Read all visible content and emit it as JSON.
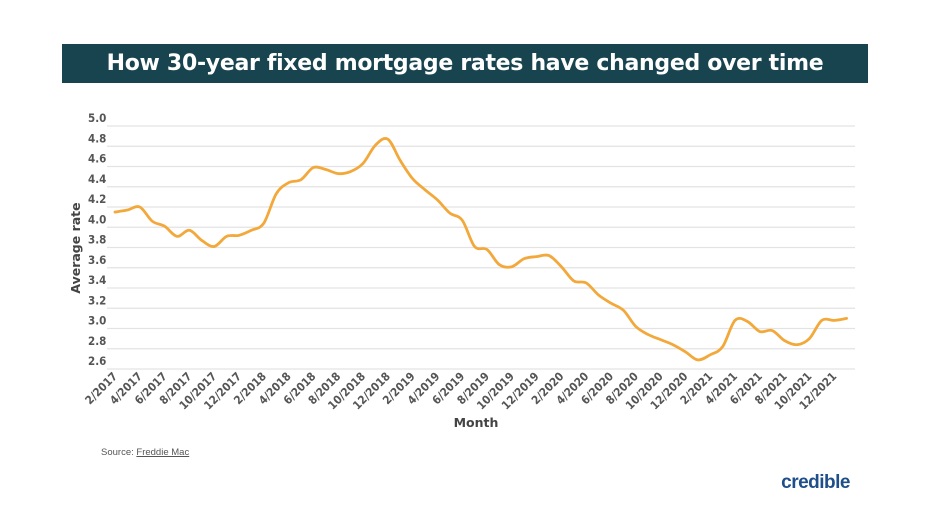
{
  "chart_data": {
    "type": "line",
    "title": "How 30-year fixed mortgage rates have changed over time",
    "xlabel": "Month",
    "ylabel": "Average rate",
    "ylim": [
      2.6,
      5.0
    ],
    "yticks": [
      "5.0",
      "4.8",
      "4.6",
      "4.4",
      "4.2",
      "4.0",
      "3.8",
      "3.6",
      "3.4",
      "3.2",
      "3.0",
      "2.8",
      "2.6"
    ],
    "xticks": [
      "2/2017",
      "4/2017",
      "6/2017",
      "8/2017",
      "10/2017",
      "12/2017",
      "2/2018",
      "4/2018",
      "6/2018",
      "8/2018",
      "10/2018",
      "12/2018",
      "2/2019",
      "4/2019",
      "6/2019",
      "8/2019",
      "10/2019",
      "12/2019",
      "2/2020",
      "4/2020",
      "6/2020",
      "8/2020",
      "10/2020",
      "12/2020",
      "2/2021",
      "4/2021",
      "6/2021",
      "8/2021",
      "10/2021",
      "12/2021"
    ],
    "grid": "horizontal",
    "line_color": "#f2a83a",
    "x_start": "2/2017",
    "values": [
      4.15,
      4.17,
      4.2,
      4.06,
      4.01,
      3.91,
      3.97,
      3.87,
      3.81,
      3.91,
      3.92,
      3.97,
      4.04,
      4.33,
      4.44,
      4.47,
      4.59,
      4.57,
      4.53,
      4.55,
      4.63,
      4.81,
      4.87,
      4.66,
      4.48,
      4.37,
      4.27,
      4.14,
      4.07,
      3.81,
      3.78,
      3.63,
      3.61,
      3.69,
      3.71,
      3.72,
      3.61,
      3.47,
      3.45,
      3.33,
      3.25,
      3.18,
      3.02,
      2.94,
      2.89,
      2.84,
      2.77,
      2.69,
      2.74,
      2.82,
      3.08,
      3.07,
      2.97,
      2.98,
      2.88,
      2.84,
      2.9,
      3.08,
      3.08,
      3.1
    ]
  },
  "source": {
    "label": "Source:",
    "link": "Freddie Mac"
  },
  "brand": "credible",
  "colors": {
    "banner": "#18444f",
    "brand": "#1f4f8a"
  }
}
